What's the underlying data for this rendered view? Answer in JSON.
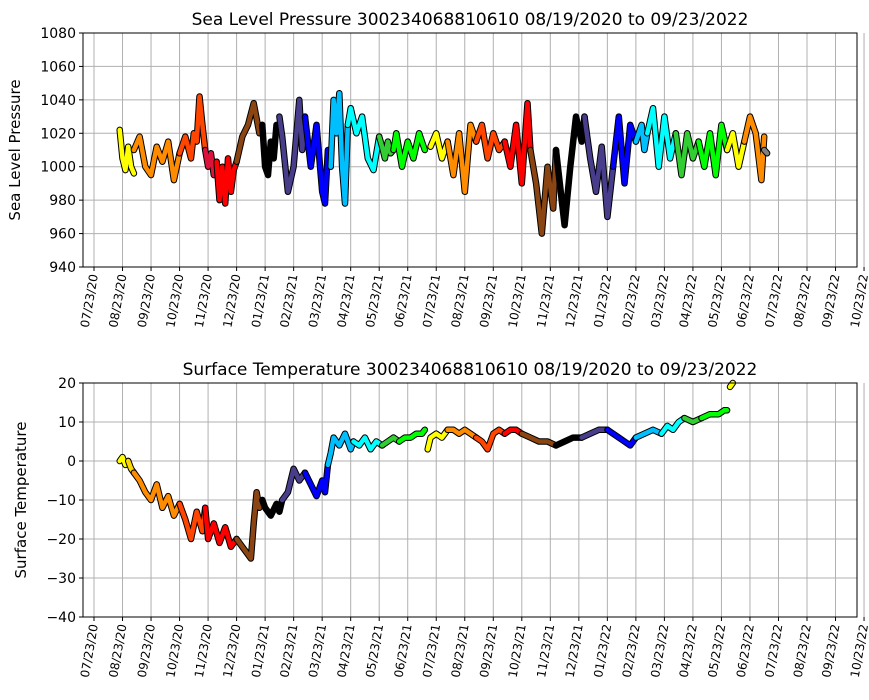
{
  "chart_data": [
    {
      "type": "line",
      "title": "Sea Level Pressure 300234068810610  08/19/2020 to 09/23/2022",
      "xlabel": "",
      "ylabel": "Sea Level Pressure",
      "ylim": [
        940,
        1080
      ],
      "yticks": [
        "940",
        "960",
        "980",
        "1000",
        "1020",
        "1040",
        "1060",
        "1080"
      ],
      "xticks": [
        "07/23/20",
        "08/23/20",
        "09/23/20",
        "10/23/20",
        "11/23/20",
        "12/23/20",
        "01/23/21",
        "02/23/21",
        "03/23/21",
        "04/23/21",
        "05/23/21",
        "06/23/21",
        "07/23/21",
        "08/23/21",
        "09/23/21",
        "10/23/21",
        "11/23/21",
        "12/23/21",
        "01/23/22",
        "02/23/22",
        "03/23/22",
        "04/23/22",
        "05/23/22",
        "06/23/22",
        "07/23/22",
        "08/23/22",
        "09/23/22",
        "10/23/22"
      ],
      "grid": true,
      "series": [
        {
          "color": "#ffff00",
          "x": [
            0.9,
            1.0,
            1.1,
            1.2,
            1.3,
            1.4
          ],
          "y": [
            1022,
            1005,
            998,
            1012,
            1000,
            996
          ]
        },
        {
          "color": "#ff8c00",
          "x": [
            1.4,
            1.6,
            1.8,
            2.0,
            2.2,
            2.4,
            2.6,
            2.8,
            3.0
          ],
          "y": [
            1010,
            1018,
            1000,
            995,
            1012,
            1003,
            1015,
            992,
            1008
          ]
        },
        {
          "color": "#ff4500",
          "x": [
            3.0,
            3.2,
            3.4,
            3.5,
            3.6,
            3.7,
            3.8,
            3.9
          ],
          "y": [
            1008,
            1018,
            1005,
            1020,
            1015,
            1042,
            1025,
            1010
          ]
        },
        {
          "color": "#dc143c",
          "x": [
            3.9,
            4.0,
            4.1,
            4.2,
            4.3
          ],
          "y": [
            1010,
            1000,
            1008,
            995,
            1003
          ]
        },
        {
          "color": "#ff0000",
          "x": [
            4.3,
            4.4,
            4.5,
            4.6,
            4.7,
            4.8,
            4.9,
            5.0
          ],
          "y": [
            1003,
            980,
            1000,
            978,
            1005,
            985,
            998,
            1003
          ]
        },
        {
          "color": "#8b4513",
          "x": [
            5.0,
            5.2,
            5.4,
            5.6,
            5.8,
            5.9
          ],
          "y": [
            1003,
            1018,
            1025,
            1038,
            1020,
            1025
          ]
        },
        {
          "color": "#000000",
          "x": [
            5.9,
            6.0,
            6.1,
            6.2,
            6.3,
            6.4,
            6.5
          ],
          "y": [
            1025,
            1000,
            995,
            1015,
            1005,
            1025,
            1022
          ]
        },
        {
          "color": "#483d8b",
          "x": [
            6.5,
            6.6,
            6.8,
            7.0,
            7.2,
            7.3,
            7.4
          ],
          "y": [
            1030,
            1018,
            985,
            1000,
            1040,
            1010,
            1030
          ]
        },
        {
          "color": "#0000ff",
          "x": [
            7.4,
            7.6,
            7.8,
            8.0,
            8.1,
            8.2,
            8.3
          ],
          "y": [
            1030,
            1000,
            1025,
            985,
            978,
            1010,
            1000
          ]
        },
        {
          "color": "#00bfff",
          "x": [
            8.3,
            8.4,
            8.5,
            8.6,
            8.7,
            8.8,
            8.9
          ],
          "y": [
            1000,
            1040,
            1020,
            1044,
            1000,
            978,
            1025
          ]
        },
        {
          "color": "#00ffff",
          "x": [
            8.9,
            9.0,
            9.2,
            9.4,
            9.6,
            9.8,
            10.0
          ],
          "y": [
            1025,
            1035,
            1020,
            1030,
            1005,
            998,
            1018
          ]
        },
        {
          "color": "#32cd32",
          "x": [
            10.0,
            10.1,
            10.2,
            10.3,
            10.4,
            10.5
          ],
          "y": [
            1018,
            1012,
            1005,
            1015,
            1008,
            1010
          ]
        },
        {
          "color": "#00ff00",
          "x": [
            10.5,
            10.6,
            10.8,
            11.0,
            11.2,
            11.4,
            11.6
          ],
          "y": [
            1010,
            1020,
            1000,
            1015,
            1005,
            1020,
            1010
          ]
        },
        {
          "color": "#ffff00",
          "x": [
            11.8,
            12.0,
            12.2,
            12.4
          ],
          "y": [
            1012,
            1020,
            1005,
            1015
          ]
        },
        {
          "color": "#ff8c00",
          "x": [
            12.4,
            12.6,
            12.8,
            13.0,
            13.2,
            13.4
          ],
          "y": [
            1015,
            995,
            1020,
            985,
            1025,
            1015
          ]
        },
        {
          "color": "#ff4500",
          "x": [
            13.4,
            13.6,
            13.8,
            14.0,
            14.2,
            14.4
          ],
          "y": [
            1015,
            1025,
            1005,
            1020,
            1010,
            1015
          ]
        },
        {
          "color": "#ff0000",
          "x": [
            14.4,
            14.6,
            14.8,
            15.0,
            15.2,
            15.3
          ],
          "y": [
            1015,
            1000,
            1025,
            990,
            1038,
            1010
          ]
        },
        {
          "color": "#8b4513",
          "x": [
            15.3,
            15.5,
            15.7,
            15.9,
            16.1,
            16.2
          ],
          "y": [
            1010,
            990,
            960,
            1000,
            975,
            1010
          ]
        },
        {
          "color": "#000000",
          "x": [
            16.2,
            16.4,
            16.5,
            16.7,
            16.9,
            17.1,
            17.2
          ],
          "y": [
            1010,
            980,
            965,
            1000,
            1030,
            1015,
            1030
          ]
        },
        {
          "color": "#483d8b",
          "x": [
            17.2,
            17.4,
            17.6,
            17.8,
            18.0,
            18.2
          ],
          "y": [
            1030,
            1005,
            985,
            1012,
            970,
            1000
          ]
        },
        {
          "color": "#0000ff",
          "x": [
            18.2,
            18.4,
            18.6,
            18.8,
            19.0
          ],
          "y": [
            1000,
            1030,
            990,
            1025,
            1015
          ]
        },
        {
          "color": "#00bfff",
          "x": [
            19.0,
            19.2,
            19.3,
            19.4
          ],
          "y": [
            1015,
            1025,
            1010,
            1020
          ]
        },
        {
          "color": "#00ffff",
          "x": [
            19.4,
            19.6,
            19.8,
            20.0,
            20.2,
            20.4
          ],
          "y": [
            1020,
            1035,
            1000,
            1030,
            1005,
            1020
          ]
        },
        {
          "color": "#32cd32",
          "x": [
            20.4,
            20.6,
            20.8,
            21.0,
            21.2
          ],
          "y": [
            1020,
            995,
            1020,
            1005,
            1015
          ]
        },
        {
          "color": "#00ff00",
          "x": [
            21.2,
            21.4,
            21.6,
            21.8,
            22.0,
            22.2
          ],
          "y": [
            1015,
            1000,
            1020,
            995,
            1025,
            1010
          ]
        },
        {
          "color": "#ffff00",
          "x": [
            22.2,
            22.4,
            22.6,
            22.8
          ],
          "y": [
            1010,
            1020,
            1000,
            1015
          ]
        },
        {
          "color": "#ff8c00",
          "x": [
            22.8,
            23.0,
            23.2,
            23.4,
            23.5
          ],
          "y": [
            1015,
            1030,
            1020,
            992,
            1018
          ]
        },
        {
          "color": "#808080",
          "x": [
            23.5,
            23.6
          ],
          "y": [
            1010,
            1008
          ]
        }
      ]
    },
    {
      "type": "line",
      "title": "Surface Temperature 300234068810610  08/19/2020 to 09/23/2022",
      "xlabel": "",
      "ylabel": "Surface Temperature",
      "ylim": [
        -40,
        20
      ],
      "yticks": [
        "−40",
        "−30",
        "−20",
        "−10",
        "0",
        "10",
        "20"
      ],
      "xticks": [
        "07/23/20",
        "08/23/20",
        "09/23/20",
        "10/23/20",
        "11/23/20",
        "12/23/20",
        "01/23/21",
        "02/23/21",
        "03/23/21",
        "04/23/21",
        "05/23/21",
        "06/23/21",
        "07/23/21",
        "08/23/21",
        "09/23/21",
        "10/23/21",
        "11/23/21",
        "12/23/21",
        "01/23/22",
        "02/23/22",
        "03/23/22",
        "04/23/22",
        "05/23/22",
        "06/23/22",
        "07/23/22",
        "08/23/22",
        "09/23/22",
        "10/23/22"
      ],
      "grid": true,
      "series": [
        {
          "color": "#ffff00",
          "x": [
            0.9,
            1.0,
            1.1,
            1.2
          ],
          "y": [
            0,
            1,
            -1,
            0
          ]
        },
        {
          "color": "#ffd700",
          "x": [
            1.2,
            1.3,
            1.4
          ],
          "y": [
            0,
            -2,
            -3
          ]
        },
        {
          "color": "#ff8c00",
          "x": [
            1.4,
            1.6,
            1.8,
            2.0,
            2.2,
            2.4,
            2.6,
            2.8,
            3.0
          ],
          "y": [
            -3,
            -5,
            -8,
            -10,
            -6,
            -12,
            -9,
            -14,
            -11
          ]
        },
        {
          "color": "#ff4500",
          "x": [
            3.0,
            3.2,
            3.4,
            3.6,
            3.8,
            3.9
          ],
          "y": [
            -11,
            -15,
            -20,
            -13,
            -18,
            -12
          ]
        },
        {
          "color": "#ff0000",
          "x": [
            3.9,
            4.0,
            4.2,
            4.4,
            4.6,
            4.8,
            5.0
          ],
          "y": [
            -12,
            -20,
            -16,
            -21,
            -17,
            -22,
            -20
          ]
        },
        {
          "color": "#8b4513",
          "x": [
            5.0,
            5.2,
            5.4,
            5.5,
            5.6,
            5.7,
            5.8,
            5.9
          ],
          "y": [
            -20,
            -22,
            -24,
            -25,
            -16,
            -8,
            -12,
            -10
          ]
        },
        {
          "color": "#000000",
          "x": [
            5.9,
            6.0,
            6.2,
            6.4,
            6.5,
            6.6
          ],
          "y": [
            -10,
            -12,
            -14,
            -11,
            -13,
            -10
          ]
        },
        {
          "color": "#483d8b",
          "x": [
            6.6,
            6.8,
            7.0,
            7.2,
            7.4
          ],
          "y": [
            -10,
            -8,
            -2,
            -5,
            -3
          ]
        },
        {
          "color": "#0000ff",
          "x": [
            7.4,
            7.6,
            7.8,
            8.0,
            8.1,
            8.2
          ],
          "y": [
            -3,
            -6,
            -9,
            -5,
            -8,
            -1
          ]
        },
        {
          "color": "#00bfff",
          "x": [
            8.2,
            8.3,
            8.4,
            8.6,
            8.8,
            9.0,
            9.1
          ],
          "y": [
            -1,
            2,
            6,
            4,
            7,
            3,
            5
          ]
        },
        {
          "color": "#00ffff",
          "x": [
            9.1,
            9.3,
            9.5,
            9.7,
            9.9,
            10.1
          ],
          "y": [
            5,
            4,
            6,
            3,
            5,
            4
          ]
        },
        {
          "color": "#32cd32",
          "x": [
            10.1,
            10.3,
            10.5,
            10.7
          ],
          "y": [
            4,
            5,
            6,
            5
          ]
        },
        {
          "color": "#00ff00",
          "x": [
            10.7,
            10.9,
            11.1,
            11.3,
            11.5,
            11.6
          ],
          "y": [
            5,
            6,
            6,
            7,
            7,
            8
          ]
        },
        {
          "color": "#ffff00",
          "x": [
            11.7,
            11.8,
            12.0,
            12.2,
            12.4
          ],
          "y": [
            3,
            6,
            7,
            6,
            8
          ]
        },
        {
          "color": "#ff8c00",
          "x": [
            12.4,
            12.6,
            12.8,
            13.0,
            13.2,
            13.4
          ],
          "y": [
            8,
            8,
            7,
            8,
            7,
            6
          ]
        },
        {
          "color": "#ff4500",
          "x": [
            13.4,
            13.6,
            13.8,
            14.0,
            14.2,
            14.4
          ],
          "y": [
            6,
            5,
            3,
            7,
            8,
            7
          ]
        },
        {
          "color": "#ff0000",
          "x": [
            14.4,
            14.6,
            14.8,
            15.0
          ],
          "y": [
            7,
            8,
            8,
            7
          ]
        },
        {
          "color": "#8b4513",
          "x": [
            15.0,
            15.3,
            15.6,
            15.9,
            16.2
          ],
          "y": [
            7,
            6,
            5,
            5,
            4
          ]
        },
        {
          "color": "#000000",
          "x": [
            16.2,
            16.5,
            16.8,
            17.1
          ],
          "y": [
            4,
            5,
            6,
            6
          ]
        },
        {
          "color": "#483d8b",
          "x": [
            17.1,
            17.4,
            17.7,
            18.0
          ],
          "y": [
            6,
            7,
            8,
            8
          ]
        },
        {
          "color": "#0000ff",
          "x": [
            18.0,
            18.2,
            18.4,
            18.6,
            18.8,
            19.0
          ],
          "y": [
            8,
            7,
            6,
            5,
            4,
            6
          ]
        },
        {
          "color": "#00bfff",
          "x": [
            19.0,
            19.3,
            19.6,
            19.9
          ],
          "y": [
            6,
            7,
            8,
            7
          ]
        },
        {
          "color": "#00ffff",
          "x": [
            19.9,
            20.1,
            20.3,
            20.5,
            20.7
          ],
          "y": [
            7,
            9,
            8,
            10,
            11
          ]
        },
        {
          "color": "#32cd32",
          "x": [
            20.7,
            21.0,
            21.3
          ],
          "y": [
            11,
            10,
            11
          ]
        },
        {
          "color": "#00ff00",
          "x": [
            21.3,
            21.6,
            21.9,
            22.1,
            22.2
          ],
          "y": [
            11,
            12,
            12,
            13,
            13
          ]
        },
        {
          "color": "#ffff00",
          "x": [
            22.3,
            22.4
          ],
          "y": [
            19,
            20
          ]
        }
      ]
    }
  ]
}
